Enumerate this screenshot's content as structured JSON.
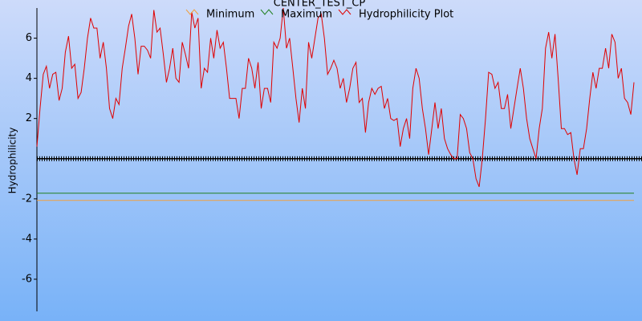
{
  "chart_data": {
    "type": "line",
    "title": "CENTER_TEST_CP",
    "y_label": "Hydrophilicity",
    "ylim": [
      -7.6,
      7.5
    ],
    "yticks": [
      -6,
      -4,
      -2,
      2,
      4,
      6
    ],
    "series": [
      {
        "name": "Minimum",
        "color": "#f0a040",
        "values": [
          -2.08,
          -2.08
        ]
      },
      {
        "name": "Maximum",
        "color": "#208020",
        "values": [
          -1.72,
          -1.72
        ]
      },
      {
        "name": "Hydrophilicity Plot",
        "color": "#e00000",
        "values": [
          0.6,
          2.5,
          4.2,
          4.6,
          3.5,
          4.2,
          4.3,
          2.9,
          3.5,
          5.3,
          6.1,
          4.5,
          4.7,
          3.0,
          3.3,
          4.5,
          6.0,
          7.0,
          6.5,
          6.5,
          5.0,
          5.8,
          4.5,
          2.5,
          2.0,
          3.0,
          2.7,
          4.5,
          5.5,
          6.6,
          7.2,
          6.0,
          4.2,
          5.6,
          5.6,
          5.4,
          5.0,
          7.4,
          6.3,
          6.5,
          5.2,
          3.8,
          4.5,
          5.5,
          4.0,
          3.8,
          5.8,
          5.2,
          4.5,
          7.3,
          6.5,
          7.0,
          3.5,
          4.5,
          4.3,
          6.0,
          5.0,
          6.4,
          5.5,
          5.8,
          4.5,
          3.0,
          3.0,
          3.0,
          2.0,
          3.5,
          3.5,
          5.0,
          4.5,
          3.5,
          4.8,
          2.5,
          3.5,
          3.5,
          2.8,
          5.8,
          5.5,
          6.0,
          7.5,
          5.5,
          6.0,
          4.5,
          3.0,
          1.8,
          3.5,
          2.5,
          5.8,
          5.0,
          6.0,
          7.0,
          7.2,
          6.0,
          4.2,
          4.5,
          4.9,
          4.5,
          3.5,
          4.0,
          2.8,
          3.5,
          4.5,
          4.8,
          2.8,
          3.0,
          1.3,
          2.8,
          3.5,
          3.2,
          3.5,
          3.6,
          2.5,
          3.0,
          2.0,
          1.9,
          2.0,
          0.6,
          1.5,
          2.0,
          1.0,
          3.5,
          4.5,
          4.0,
          2.5,
          1.5,
          0.2,
          1.5,
          2.8,
          1.5,
          2.5,
          1.0,
          0.5,
          0.2,
          0.0,
          0.0,
          2.2,
          2.0,
          1.5,
          0.3,
          0.0,
          -1.0,
          -1.4,
          0.0,
          2.0,
          4.3,
          4.2,
          3.5,
          3.8,
          2.5,
          2.5,
          3.2,
          1.5,
          2.5,
          3.5,
          4.5,
          3.5,
          2.0,
          1.0,
          0.5,
          0.0,
          1.5,
          2.5,
          5.5,
          6.3,
          5.0,
          6.2,
          4.0,
          1.5,
          1.5,
          1.2,
          1.3,
          0.0,
          -0.8,
          0.5,
          0.5,
          1.5,
          3.0,
          4.3,
          3.5,
          4.5,
          4.5,
          5.5,
          4.5,
          6.2,
          5.8,
          4.0,
          4.5,
          3.0,
          2.8,
          2.2,
          3.8
        ]
      }
    ]
  }
}
